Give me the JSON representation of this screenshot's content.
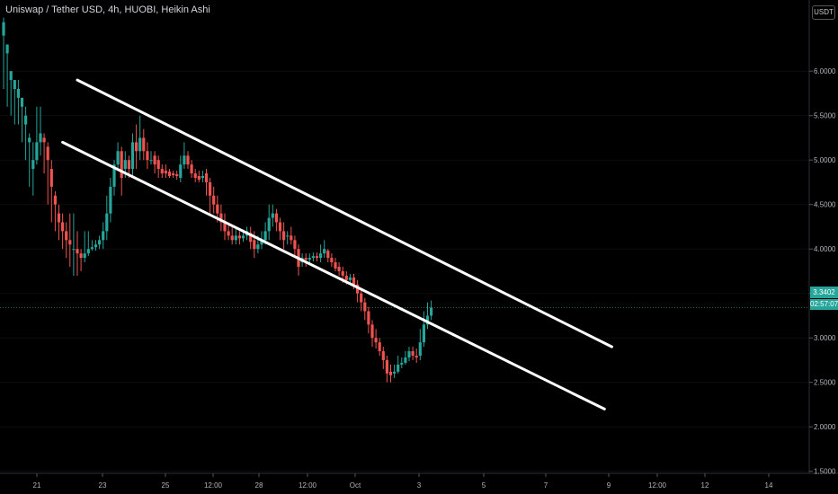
{
  "header": {
    "title": "Uniswap / Tether USD, 4h, HUOBI, Heikin Ashi",
    "currency": "USDT"
  },
  "price_label": {
    "value": "3.3402",
    "countdown": "02:57:07"
  },
  "colors": {
    "up": "#26a69a",
    "down": "#ef5350",
    "channel": "#ffffff",
    "background": "#000000"
  },
  "chart_data": {
    "type": "candlestick",
    "style": "Heikin Ashi",
    "symbol": "Uniswap / Tether USD",
    "interval": "4h",
    "exchange": "HUOBI",
    "y_axis": {
      "range": [
        1.3,
        6.8
      ],
      "ticks": [
        "6.0000",
        "5.5000",
        "5.0000",
        "4.5000",
        "4.0000",
        "3.5000",
        "3.0000",
        "2.5000",
        "2.0000",
        "1.5000"
      ]
    },
    "x_axis": {
      "ticks": [
        "21",
        "23",
        "25",
        "12:00",
        "28",
        "12:00",
        "Oct",
        "3",
        "5",
        "7",
        "9",
        "12:00",
        "12",
        "14"
      ]
    },
    "candles": {
      "note_units": "price in USDT",
      "list": [
        [
          6.4,
          6.55,
          5.8,
          6.6
        ],
        [
          6.2,
          6.3,
          5.6,
          6.3
        ],
        [
          5.9,
          6.0,
          5.5,
          6.0
        ],
        [
          5.8,
          5.9,
          5.4,
          5.9
        ],
        [
          5.7,
          5.8,
          5.4,
          5.9
        ],
        [
          5.6,
          5.7,
          5.2,
          5.7
        ],
        [
          5.4,
          5.5,
          5.0,
          5.6
        ],
        [
          5.2,
          5.25,
          4.7,
          5.3
        ],
        [
          4.9,
          5.0,
          4.6,
          5.2
        ],
        [
          5.0,
          5.2,
          4.95,
          5.6
        ],
        [
          5.2,
          5.3,
          5.05,
          5.6
        ],
        [
          5.25,
          5.2,
          4.85,
          5.3
        ],
        [
          5.15,
          5.0,
          4.5,
          5.2
        ],
        [
          4.9,
          4.7,
          4.3,
          5.0
        ],
        [
          4.6,
          4.5,
          4.2,
          4.65
        ],
        [
          4.4,
          4.3,
          4.1,
          4.5
        ],
        [
          4.3,
          4.2,
          4.0,
          4.4
        ],
        [
          4.2,
          4.1,
          3.9,
          4.3
        ],
        [
          4.1,
          4.05,
          3.8,
          4.4
        ],
        [
          4.0,
          4.0,
          3.7,
          4.4
        ],
        [
          4.0,
          3.95,
          3.7,
          4.2
        ],
        [
          3.95,
          3.9,
          3.75,
          4.0
        ],
        [
          3.9,
          3.95,
          3.85,
          4.2
        ],
        [
          3.95,
          4.0,
          3.92,
          4.2
        ],
        [
          4.0,
          4.02,
          3.98,
          4.1
        ],
        [
          4.02,
          4.05,
          3.98,
          4.1
        ],
        [
          4.05,
          4.1,
          4.0,
          4.15
        ],
        [
          4.1,
          4.2,
          4.0,
          4.3
        ],
        [
          4.2,
          4.4,
          4.1,
          4.6
        ],
        [
          4.4,
          4.7,
          4.3,
          4.8
        ],
        [
          4.7,
          4.95,
          4.6,
          5.0
        ],
        [
          4.95,
          5.1,
          4.9,
          5.2
        ],
        [
          5.1,
          4.8,
          4.6,
          5.15
        ],
        [
          4.9,
          5.0,
          4.8,
          5.1
        ],
        [
          5.0,
          4.9,
          4.8,
          5.05
        ],
        [
          4.9,
          5.2,
          4.8,
          5.3
        ],
        [
          5.2,
          5.1,
          4.9,
          5.4
        ],
        [
          5.1,
          5.25,
          5.0,
          5.5
        ],
        [
          5.25,
          5.1,
          5.0,
          5.35
        ],
        [
          5.1,
          5.0,
          4.9,
          5.2
        ],
        [
          5.0,
          5.0,
          4.95,
          5.1
        ],
        [
          5.05,
          4.95,
          4.85,
          5.1
        ],
        [
          5.0,
          4.9,
          4.8,
          5.05
        ],
        [
          4.9,
          4.85,
          4.8,
          4.95
        ],
        [
          4.88,
          4.85,
          4.8,
          4.95
        ],
        [
          4.87,
          4.82,
          4.8,
          4.9
        ],
        [
          4.85,
          4.83,
          4.8,
          4.88
        ],
        [
          4.84,
          4.82,
          4.78,
          4.88
        ],
        [
          4.8,
          4.95,
          4.75,
          5.05
        ],
        [
          4.95,
          5.05,
          4.9,
          5.2
        ],
        [
          5.05,
          4.95,
          4.9,
          5.1
        ],
        [
          4.95,
          4.85,
          4.8,
          5.0
        ],
        [
          4.85,
          4.8,
          4.75,
          4.9
        ],
        [
          4.82,
          4.78,
          4.75,
          4.88
        ],
        [
          4.8,
          4.82,
          4.75,
          4.88
        ],
        [
          4.85,
          4.75,
          4.6,
          4.9
        ],
        [
          4.75,
          4.6,
          4.4,
          4.8
        ],
        [
          4.6,
          4.5,
          4.4,
          4.7
        ],
        [
          4.5,
          4.4,
          4.3,
          4.6
        ],
        [
          4.4,
          4.3,
          4.2,
          4.5
        ],
        [
          4.3,
          4.2,
          4.1,
          4.4
        ],
        [
          4.2,
          4.15,
          4.1,
          4.3
        ],
        [
          4.15,
          4.1,
          4.05,
          4.25
        ],
        [
          4.1,
          4.15,
          4.05,
          4.25
        ],
        [
          4.15,
          4.12,
          4.05,
          4.2
        ],
        [
          4.12,
          4.15,
          4.08,
          4.22
        ],
        [
          4.15,
          4.2,
          4.1,
          4.25
        ],
        [
          4.18,
          4.08,
          4.0,
          4.25
        ],
        [
          4.1,
          4.0,
          3.9,
          4.2
        ],
        [
          4.0,
          4.05,
          3.95,
          4.15
        ],
        [
          4.05,
          4.1,
          4.0,
          4.2
        ],
        [
          4.1,
          4.2,
          4.05,
          4.3
        ],
        [
          4.2,
          4.35,
          4.1,
          4.5
        ],
        [
          4.35,
          4.4,
          4.25,
          4.5
        ],
        [
          4.4,
          4.3,
          4.2,
          4.45
        ],
        [
          4.3,
          4.2,
          4.1,
          4.35
        ],
        [
          4.2,
          4.1,
          4.0,
          4.3
        ],
        [
          4.15,
          4.15,
          4.05,
          4.2
        ],
        [
          4.15,
          4.1,
          4.05,
          4.25
        ],
        [
          4.1,
          4.0,
          3.9,
          4.15
        ],
        [
          4.0,
          3.8,
          3.7,
          4.05
        ],
        [
          3.85,
          3.9,
          3.8,
          3.95
        ],
        [
          3.9,
          3.88,
          3.8,
          3.95
        ],
        [
          3.88,
          3.9,
          3.84,
          3.95
        ],
        [
          3.9,
          3.92,
          3.86,
          3.96
        ],
        [
          3.92,
          3.9,
          3.86,
          3.96
        ],
        [
          3.9,
          3.95,
          3.85,
          4.05
        ],
        [
          3.95,
          4.0,
          3.9,
          4.1
        ],
        [
          3.98,
          3.9,
          3.85,
          4.0
        ],
        [
          3.9,
          3.85,
          3.8,
          3.95
        ],
        [
          3.85,
          3.78,
          3.75,
          3.9
        ],
        [
          3.8,
          3.75,
          3.7,
          3.85
        ],
        [
          3.75,
          3.7,
          3.62,
          3.8
        ],
        [
          3.7,
          3.65,
          3.6,
          3.75
        ],
        [
          3.65,
          3.68,
          3.6,
          3.72
        ],
        [
          3.68,
          3.6,
          3.55,
          3.72
        ],
        [
          3.6,
          3.5,
          3.4,
          3.65
        ],
        [
          3.5,
          3.4,
          3.3,
          3.55
        ],
        [
          3.4,
          3.3,
          3.2,
          3.45
        ],
        [
          3.3,
          3.15,
          3.05,
          3.35
        ],
        [
          3.15,
          3.0,
          2.9,
          3.2
        ],
        [
          3.0,
          2.95,
          2.88,
          3.1
        ],
        [
          2.95,
          2.85,
          2.8,
          3.0
        ],
        [
          2.85,
          2.75,
          2.65,
          2.9
        ],
        [
          2.75,
          2.6,
          2.5,
          2.8
        ],
        [
          2.62,
          2.58,
          2.5,
          2.7
        ],
        [
          2.6,
          2.62,
          2.55,
          2.7
        ],
        [
          2.62,
          2.7,
          2.6,
          2.8
        ],
        [
          2.7,
          2.72,
          2.66,
          2.78
        ],
        [
          2.72,
          2.78,
          2.7,
          2.85
        ],
        [
          2.78,
          2.85,
          2.74,
          2.9
        ],
        [
          2.85,
          2.8,
          2.75,
          2.9
        ],
        [
          2.8,
          2.78,
          2.72,
          2.88
        ],
        [
          2.8,
          2.95,
          2.75,
          3.1
        ],
        [
          2.95,
          3.15,
          2.9,
          3.3
        ],
        [
          3.15,
          3.25,
          3.1,
          3.4
        ],
        [
          3.25,
          3.34,
          3.2,
          3.42
        ]
      ]
    },
    "current_price": 3.3402,
    "channel_lines": [
      {
        "name": "upper",
        "from": {
          "x_index": 20,
          "price": 5.9
        },
        "to": {
          "x_index": 165,
          "price": 2.9
        }
      },
      {
        "name": "lower",
        "from": {
          "x_index": 16,
          "price": 5.2
        },
        "to": {
          "x_index": 163,
          "price": 2.2
        }
      }
    ]
  }
}
